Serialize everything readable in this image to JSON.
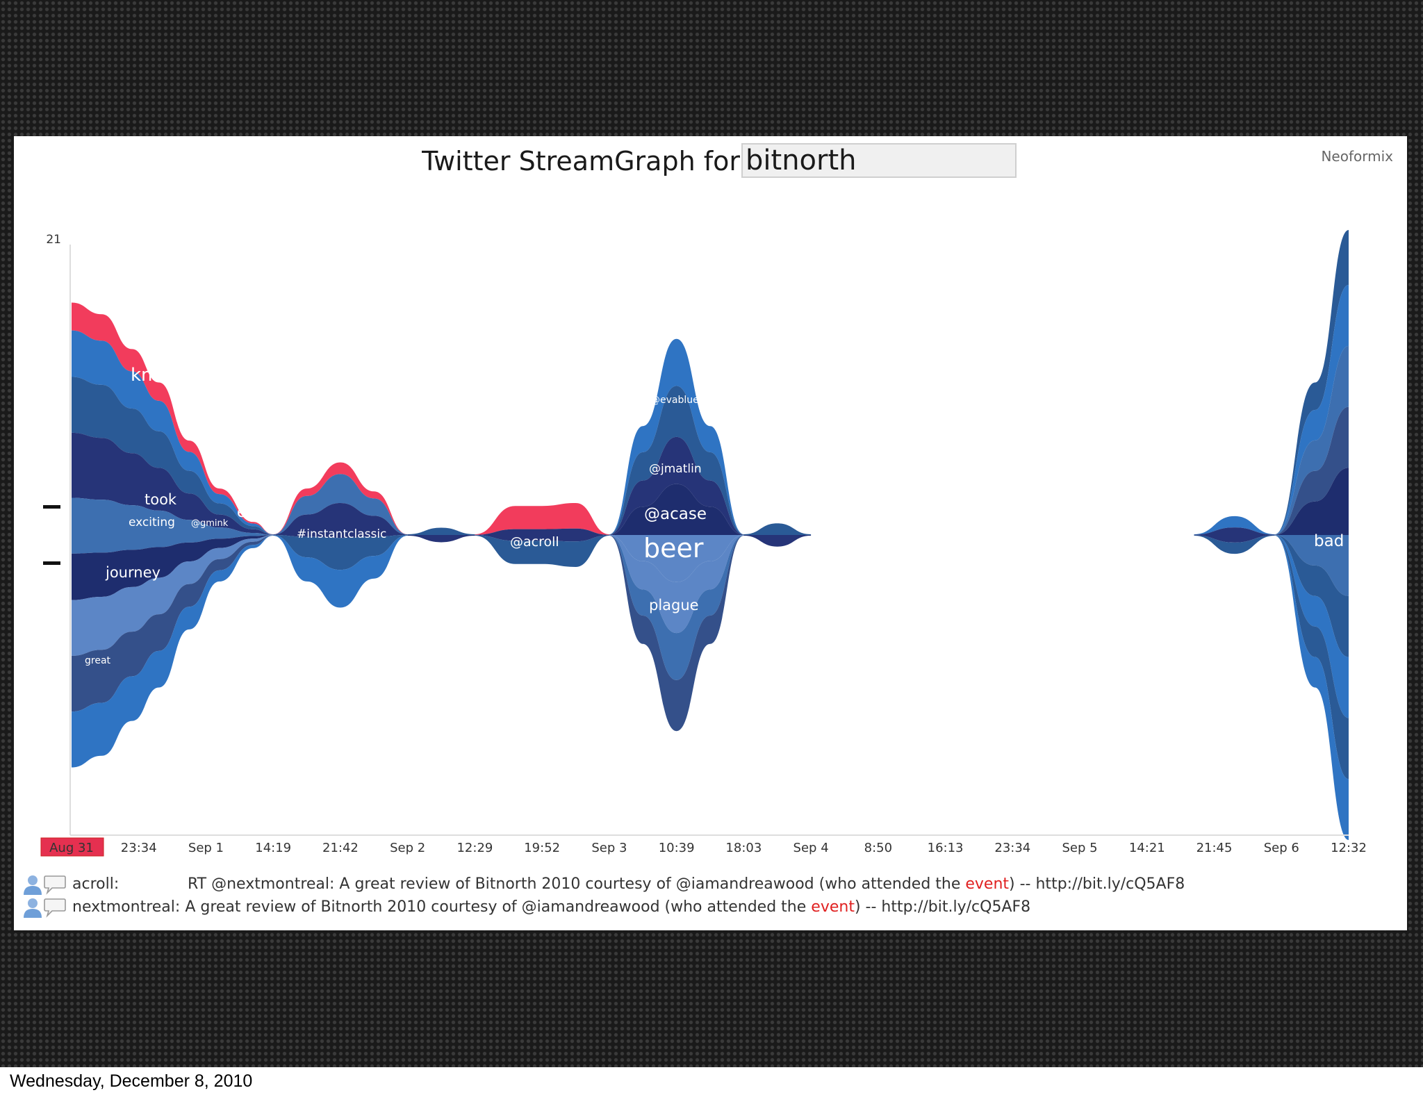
{
  "caption": "Wednesday, December 8, 2010",
  "app": {
    "title": "Twitter StreamGraph for",
    "query": "bitnorth",
    "brand": "Neoformix"
  },
  "colors": {
    "highlight": "#f23c5c",
    "streams": [
      "#2a5a96",
      "#2f74c3",
      "#3d6fb0",
      "#263478",
      "#1e2d6e",
      "#5c86c6",
      "#34508a"
    ]
  },
  "chart_data": {
    "type": "area",
    "subtype": "streamgraph",
    "ylim": [
      0,
      21
    ],
    "y_tick_labels": [
      "21"
    ],
    "x_tick_labels": [
      "Aug 31",
      "23:34",
      "Sep 1",
      "14:19",
      "21:42",
      "Sep 2",
      "12:29",
      "19:52",
      "Sep 3",
      "10:39",
      "18:03",
      "Sep 4",
      "8:50",
      "16:13",
      "23:34",
      "Sep 5",
      "14:21",
      "21:45",
      "Sep 6",
      "12:32"
    ],
    "selected_x_tick": "Aug 31",
    "highlighted_term": "event",
    "stream_labels": [
      "know",
      "took",
      "exciting",
      "@gmink",
      "event",
      "journey",
      "great",
      "#instantclassic",
      "@acroll",
      "@evablue",
      "@jmatlin",
      "@acase",
      "beer",
      "plague",
      "bad"
    ],
    "total_height_by_tick": [
      16,
      11,
      3,
      0,
      5,
      0.5,
      0,
      2,
      2.5,
      13.5,
      0.8,
      0,
      0,
      0,
      0,
      0,
      0,
      1.3,
      0,
      21
    ]
  },
  "tweets": [
    {
      "author": "acroll:",
      "text_before": "RT @nextmontreal: A great review of Bitnorth 2010 courtesy of @iamandreawood (who attended the ",
      "highlight": "event",
      "text_after": ") -- http://bit.ly/cQ5AF8"
    },
    {
      "author": "nextmontreal:",
      "text_before": "A great review of Bitnorth 2010 courtesy of @iamandreawood (who attended the ",
      "highlight": "event",
      "text_after": ") -- http://bit.ly/cQ5AF8"
    }
  ]
}
